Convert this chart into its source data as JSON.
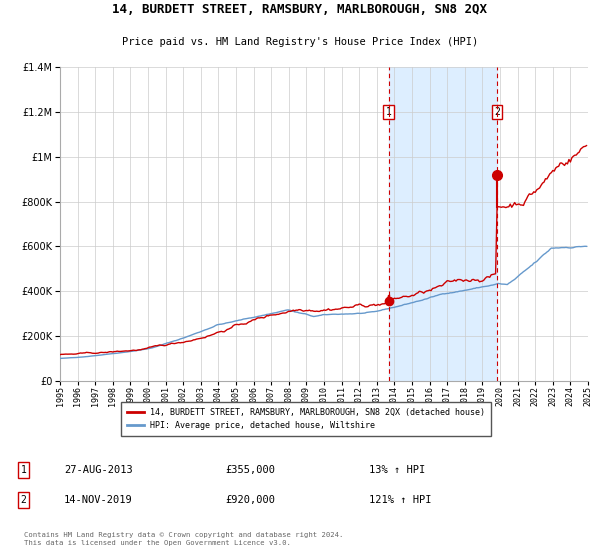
{
  "title": "14, BURDETT STREET, RAMSBURY, MARLBOROUGH, SN8 2QX",
  "subtitle": "Price paid vs. HM Land Registry's House Price Index (HPI)",
  "legend_line1": "14, BURDETT STREET, RAMSBURY, MARLBOROUGH, SN8 2QX (detached house)",
  "legend_line2": "HPI: Average price, detached house, Wiltshire",
  "ann1_date": "27-AUG-2013",
  "ann1_price": "£355,000",
  "ann1_hpi": "13% ↑ HPI",
  "ann2_date": "14-NOV-2019",
  "ann2_price": "£920,000",
  "ann2_hpi": "121% ↑ HPI",
  "hpi_line_color": "#6699cc",
  "price_line_color": "#cc0000",
  "dot_color": "#cc0000",
  "background_color": "#ffffff",
  "grid_color": "#cccccc",
  "shaded_region_color": "#ddeeff",
  "footer": "Contains HM Land Registry data © Crown copyright and database right 2024.\nThis data is licensed under the Open Government Licence v3.0.",
  "ylim": [
    0,
    1400000
  ],
  "yticks": [
    0,
    200000,
    400000,
    600000,
    800000,
    1000000,
    1200000,
    1400000
  ],
  "start_year": 1995,
  "end_year": 2025,
  "idx1": 224,
  "idx2": 298,
  "price1": 355000,
  "price2": 920000,
  "n_months": 360
}
